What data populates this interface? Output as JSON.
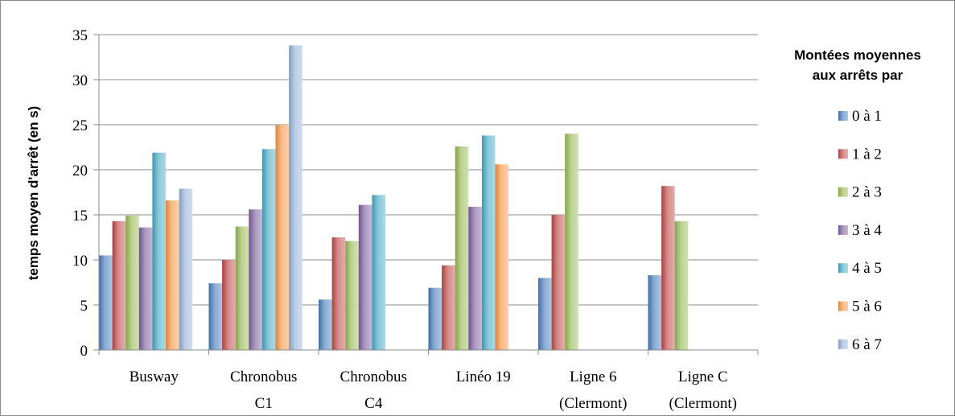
{
  "chart_data": {
    "type": "bar",
    "title": "",
    "xlabel": "",
    "ylabel": "temps moyen d'arrêt (en s)",
    "ylim": [
      0,
      35
    ],
    "yticks": [
      0,
      5,
      10,
      15,
      20,
      25,
      30,
      35
    ],
    "grid": true,
    "legend_position": "right",
    "legend_title": [
      "Montées moyennes",
      "aux arrêts par"
    ],
    "categories": [
      [
        "Busway"
      ],
      [
        "Chronobus",
        "C1"
      ],
      [
        "Chronobus",
        "C4"
      ],
      [
        "Linéo 19"
      ],
      [
        "Ligne 6",
        "(Clermont)"
      ],
      [
        "Ligne C",
        "(Clermont)"
      ]
    ],
    "series": [
      {
        "name": "0 à 1",
        "color": "#4a7ebb",
        "values": [
          10.5,
          7.4,
          5.6,
          6.9,
          8.0,
          8.3
        ]
      },
      {
        "name": "1 à 2",
        "color": "#be4b48",
        "values": [
          14.3,
          10.0,
          12.5,
          9.4,
          15.0,
          18.2
        ]
      },
      {
        "name": "2 à 3",
        "color": "#98b954",
        "values": [
          14.9,
          13.7,
          12.1,
          22.6,
          24.0,
          14.3
        ]
      },
      {
        "name": "3 à 4",
        "color": "#7d60a0",
        "values": [
          13.6,
          15.6,
          16.1,
          15.9,
          null,
          null
        ]
      },
      {
        "name": "4 à 5",
        "color": "#46aac5",
        "values": [
          21.9,
          22.3,
          17.2,
          23.8,
          null,
          null
        ]
      },
      {
        "name": "5 à 6",
        "color": "#f79646",
        "values": [
          16.6,
          25.0,
          null,
          20.6,
          null,
          null
        ]
      },
      {
        "name": "6 à 7",
        "color": "#95b3d7",
        "values": [
          17.9,
          33.8,
          null,
          null,
          null,
          null
        ]
      }
    ]
  }
}
